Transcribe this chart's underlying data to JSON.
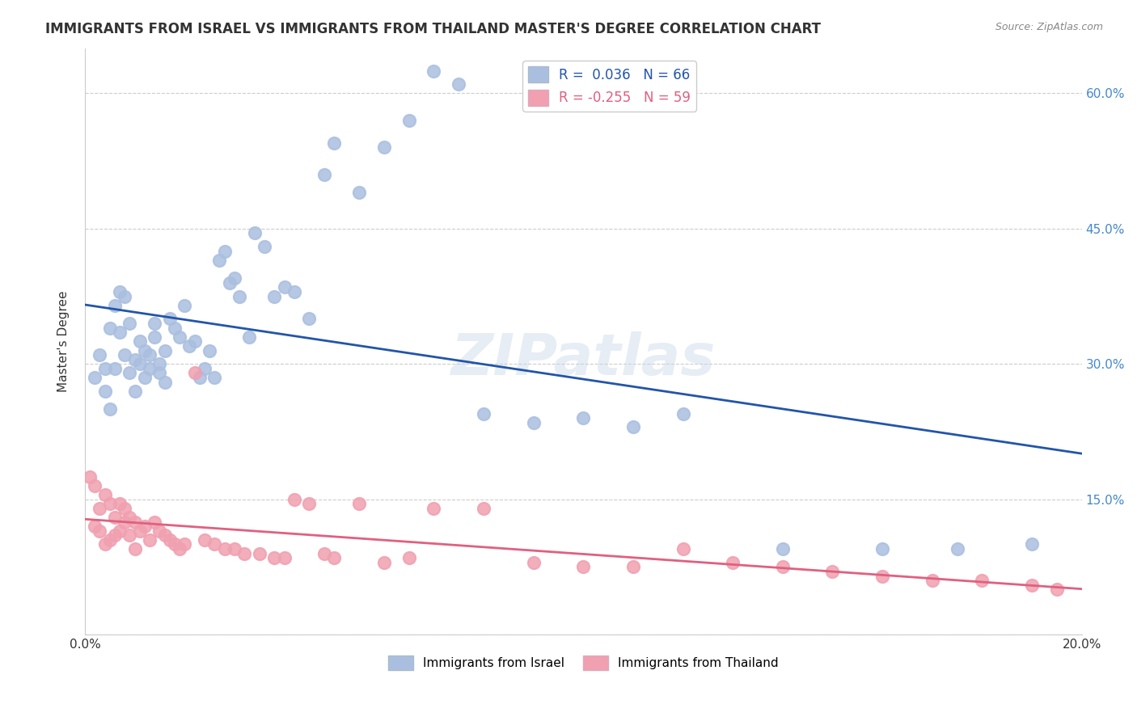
{
  "title": "IMMIGRANTS FROM ISRAEL VS IMMIGRANTS FROM THAILAND MASTER'S DEGREE CORRELATION CHART",
  "source": "Source: ZipAtlas.com",
  "ylabel": "Master's Degree",
  "watermark": "ZIPatlas",
  "legend_israel": "Immigrants from Israel",
  "legend_thailand": "Immigrants from Thailand",
  "r_israel": 0.036,
  "n_israel": 66,
  "r_thailand": -0.255,
  "n_thailand": 59,
  "xmin": 0.0,
  "xmax": 0.2,
  "ymin": 0.0,
  "ymax": 0.65,
  "grid_color": "#cccccc",
  "israel_color": "#aabfdf",
  "thailand_color": "#f0a0b0",
  "israel_line_color": "#2255aa",
  "thailand_line_color": "#e06080",
  "background_color": "#ffffff",
  "israel_points_x": [
    0.002,
    0.003,
    0.004,
    0.004,
    0.005,
    0.005,
    0.006,
    0.006,
    0.007,
    0.007,
    0.008,
    0.008,
    0.009,
    0.009,
    0.01,
    0.01,
    0.011,
    0.011,
    0.012,
    0.012,
    0.013,
    0.013,
    0.014,
    0.014,
    0.015,
    0.015,
    0.016,
    0.016,
    0.017,
    0.018,
    0.019,
    0.02,
    0.021,
    0.022,
    0.023,
    0.024,
    0.025,
    0.026,
    0.027,
    0.028,
    0.029,
    0.03,
    0.031,
    0.033,
    0.034,
    0.036,
    0.038,
    0.04,
    0.042,
    0.045,
    0.048,
    0.05,
    0.055,
    0.06,
    0.065,
    0.07,
    0.075,
    0.08,
    0.09,
    0.1,
    0.11,
    0.12,
    0.14,
    0.16,
    0.175,
    0.19
  ],
  "israel_points_y": [
    0.285,
    0.31,
    0.27,
    0.295,
    0.34,
    0.25,
    0.365,
    0.295,
    0.38,
    0.335,
    0.375,
    0.31,
    0.345,
    0.29,
    0.305,
    0.27,
    0.325,
    0.3,
    0.315,
    0.285,
    0.295,
    0.31,
    0.33,
    0.345,
    0.29,
    0.3,
    0.315,
    0.28,
    0.35,
    0.34,
    0.33,
    0.365,
    0.32,
    0.325,
    0.285,
    0.295,
    0.315,
    0.285,
    0.415,
    0.425,
    0.39,
    0.395,
    0.375,
    0.33,
    0.445,
    0.43,
    0.375,
    0.385,
    0.38,
    0.35,
    0.51,
    0.545,
    0.49,
    0.54,
    0.57,
    0.625,
    0.61,
    0.245,
    0.235,
    0.24,
    0.23,
    0.245,
    0.095,
    0.095,
    0.095,
    0.1
  ],
  "thailand_points_x": [
    0.001,
    0.002,
    0.002,
    0.003,
    0.003,
    0.004,
    0.004,
    0.005,
    0.005,
    0.006,
    0.006,
    0.007,
    0.007,
    0.008,
    0.008,
    0.009,
    0.009,
    0.01,
    0.01,
    0.011,
    0.012,
    0.013,
    0.014,
    0.015,
    0.016,
    0.017,
    0.018,
    0.019,
    0.02,
    0.022,
    0.024,
    0.026,
    0.028,
    0.03,
    0.032,
    0.035,
    0.038,
    0.04,
    0.042,
    0.045,
    0.048,
    0.05,
    0.055,
    0.06,
    0.065,
    0.07,
    0.08,
    0.09,
    0.1,
    0.11,
    0.12,
    0.13,
    0.14,
    0.15,
    0.16,
    0.17,
    0.18,
    0.19,
    0.195
  ],
  "thailand_points_y": [
    0.175,
    0.165,
    0.12,
    0.14,
    0.115,
    0.155,
    0.1,
    0.145,
    0.105,
    0.13,
    0.11,
    0.145,
    0.115,
    0.14,
    0.125,
    0.13,
    0.11,
    0.125,
    0.095,
    0.115,
    0.12,
    0.105,
    0.125,
    0.115,
    0.11,
    0.105,
    0.1,
    0.095,
    0.1,
    0.29,
    0.105,
    0.1,
    0.095,
    0.095,
    0.09,
    0.09,
    0.085,
    0.085,
    0.15,
    0.145,
    0.09,
    0.085,
    0.145,
    0.08,
    0.085,
    0.14,
    0.14,
    0.08,
    0.075,
    0.075,
    0.095,
    0.08,
    0.075,
    0.07,
    0.065,
    0.06,
    0.06,
    0.055,
    0.05
  ]
}
